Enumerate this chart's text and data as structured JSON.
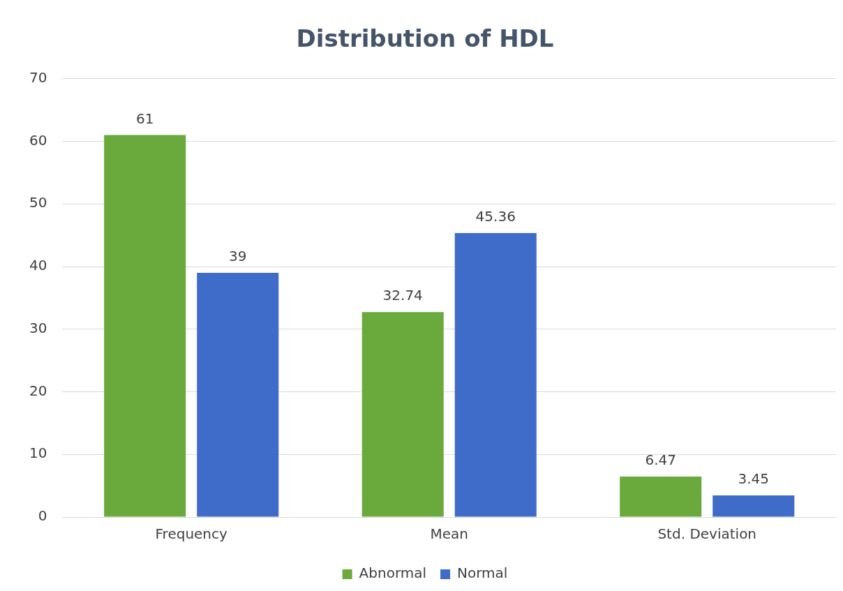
{
  "chart_data": {
    "type": "bar",
    "title": "Distribution of HDL",
    "categories": [
      "Frequency",
      "Mean",
      "Std. Deviation"
    ],
    "series": [
      {
        "name": "Abnormal",
        "color": "#6aaa3c",
        "values": [
          61,
          32.74,
          6.47
        ]
      },
      {
        "name": "Normal",
        "color": "#3f6cc8",
        "values": [
          39,
          45.36,
          3.45
        ]
      }
    ],
    "ylim": [
      0,
      70
    ],
    "yticks": [
      0,
      10,
      20,
      30,
      40,
      50,
      60,
      70
    ],
    "grid": "y",
    "legend": "bottom",
    "data_labels": true
  }
}
